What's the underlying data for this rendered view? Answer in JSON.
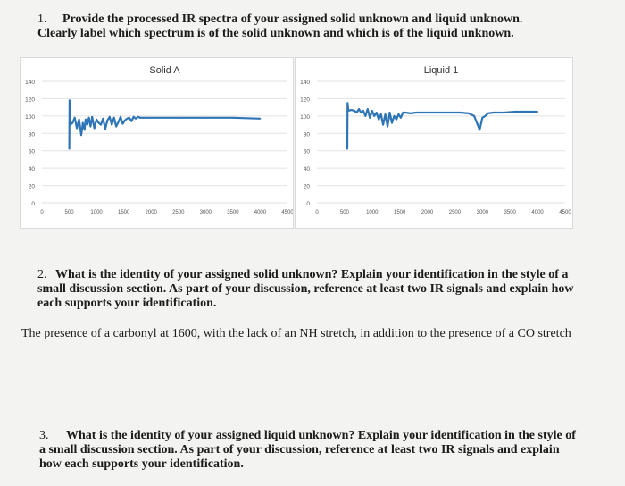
{
  "questions": {
    "q1": {
      "number": "1.",
      "text_line1": "Provide the processed IR spectra of your assigned solid unknown and liquid unknown.",
      "text_line2": "Clearly label which spectrum is of the solid unknown and which is of the liquid unknown."
    },
    "q2": {
      "number": "2.",
      "text": "What is the identity of your assigned solid unknown? Explain your identification in the style of a small discussion section. As part of your discussion, reference at least two IR signals and explain how each supports your identification."
    },
    "answer2": "The presence of a carbonyl at 1600, with the lack of an NH stretch, in addition to the presence of a CO stretch",
    "q3": {
      "number": "3.",
      "text": "What is the identity of your assigned liquid unknown? Explain your identification in the style of a small discussion section. As part of your discussion, reference at least two IR signals and explain how each supports your identification."
    }
  },
  "chart_data": [
    {
      "type": "line",
      "title": "Solid A",
      "xlabel": "",
      "ylabel": "",
      "xlim": [
        0,
        4500
      ],
      "ylim": [
        0,
        140
      ],
      "x_ticks": [
        "0",
        "500",
        "1000",
        "1500",
        "2000",
        "2500",
        "3000",
        "3500",
        "4000",
        "4500"
      ],
      "y_ticks": [
        "0",
        "20",
        "40",
        "60",
        "80",
        "100",
        "120",
        "140"
      ],
      "grid": true,
      "color": "#2e75b6",
      "series": [
        {
          "x": [
            500,
            505,
            520,
            560,
            600,
            640,
            680,
            720,
            750,
            780,
            800,
            830,
            860,
            890,
            920,
            960,
            1000,
            1040,
            1080,
            1120,
            1160,
            1200,
            1240,
            1280,
            1320,
            1360,
            1400,
            1440,
            1480,
            1520,
            1560,
            1600,
            1640,
            1680,
            1720,
            1760,
            1800,
            1900,
            2000,
            2500,
            3000,
            3500,
            4000
          ],
          "y": [
            62,
            118,
            90,
            92,
            98,
            86,
            96,
            78,
            92,
            84,
            96,
            90,
            98,
            88,
            99,
            86,
            96,
            92,
            90,
            97,
            85,
            95,
            99,
            90,
            98,
            88,
            93,
            99,
            91,
            95,
            97,
            98,
            94,
            99,
            97,
            99,
            98,
            98,
            98,
            98,
            98,
            98,
            97
          ]
        }
      ]
    },
    {
      "type": "line",
      "title": "Liquid 1",
      "xlabel": "",
      "ylabel": "",
      "xlim": [
        0,
        4500
      ],
      "ylim": [
        0,
        140
      ],
      "x_ticks": [
        "0",
        "500",
        "1000",
        "1500",
        "2000",
        "2500",
        "3000",
        "3500",
        "4000",
        "4500"
      ],
      "y_ticks": [
        "0",
        "20",
        "40",
        "60",
        "80",
        "100",
        "120",
        "140"
      ],
      "grid": true,
      "color": "#2e75b6",
      "series": [
        {
          "x": [
            550,
            555,
            570,
            620,
            680,
            720,
            760,
            800,
            840,
            880,
            920,
            960,
            1000,
            1040,
            1080,
            1120,
            1160,
            1200,
            1240,
            1280,
            1320,
            1360,
            1400,
            1440,
            1480,
            1520,
            1560,
            1600,
            1700,
            1800,
            2000,
            2200,
            2400,
            2600,
            2750,
            2850,
            2900,
            2950,
            3000,
            3050,
            3100,
            3200,
            3400,
            3600,
            4000
          ],
          "y": [
            62,
            115,
            106,
            107,
            106,
            104,
            108,
            104,
            106,
            100,
            108,
            98,
            106,
            100,
            104,
            96,
            102,
            90,
            102,
            88,
            104,
            92,
            100,
            96,
            102,
            98,
            104,
            104,
            103,
            104,
            104,
            104,
            104,
            104,
            103,
            100,
            92,
            84,
            98,
            100,
            103,
            104,
            104,
            105,
            105
          ]
        }
      ]
    }
  ]
}
